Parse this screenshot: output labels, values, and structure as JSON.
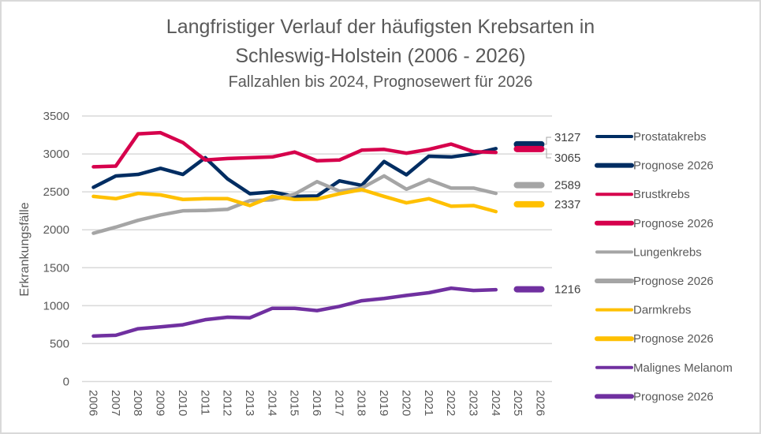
{
  "chart_data": {
    "type": "line",
    "title": "Langfristiger Verlauf der häufigsten Krebsarten in",
    "title_line2": "Schleswig-Holstein (2006 - 2026)",
    "subtitle": "Fallzahlen bis 2024, Prognosewert für 2026",
    "xlabel": "",
    "ylabel": "Erkrankungsfälle",
    "ylim": [
      0,
      3500
    ],
    "yticks": [
      0,
      500,
      1000,
      1500,
      2000,
      2500,
      3000,
      3500
    ],
    "x": [
      "2006",
      "2007",
      "2008",
      "2009",
      "2010",
      "2011",
      "2012",
      "2013",
      "2014",
      "2015",
      "2016",
      "2017",
      "2018",
      "2019",
      "2020",
      "2021",
      "2022",
      "2023",
      "2024",
      "2025",
      "2026"
    ],
    "grid": "horizontal",
    "legend_position": "right",
    "series": [
      {
        "name": "Prostatakrebs",
        "color": "#002D62",
        "values": [
          2560,
          2710,
          2730,
          2810,
          2730,
          2950,
          2670,
          2475,
          2500,
          2440,
          2445,
          2645,
          2585,
          2900,
          2725,
          2970,
          2960,
          3000,
          3070
        ]
      },
      {
        "name": "Prognose 2026",
        "color": "#002D62",
        "prognosis_of": "Prostatakrebs",
        "year": "2026",
        "value": 3127,
        "label": "3127"
      },
      {
        "name": "Brustkrebs",
        "color": "#D6004C",
        "values": [
          2830,
          2840,
          3265,
          3280,
          3150,
          2920,
          2940,
          2950,
          2960,
          3025,
          2910,
          2920,
          3050,
          3060,
          3010,
          3060,
          3130,
          3030,
          3020
        ]
      },
      {
        "name": "Prognose 2026",
        "color": "#D6004C",
        "prognosis_of": "Brustkrebs",
        "year": "2026",
        "value": 3065,
        "label": "3065"
      },
      {
        "name": "Lungenkrebs",
        "color": "#A5A5A5",
        "values": [
          1955,
          2035,
          2125,
          2195,
          2250,
          2255,
          2270,
          2385,
          2395,
          2470,
          2635,
          2510,
          2550,
          2710,
          2535,
          2660,
          2550,
          2550,
          2480
        ]
      },
      {
        "name": "Prognose 2026",
        "color": "#A5A5A5",
        "prognosis_of": "Lungenkrebs",
        "year": "2026",
        "value": 2589,
        "label": "2589"
      },
      {
        "name": "Darmkrebs",
        "color": "#FFC000",
        "values": [
          2440,
          2410,
          2480,
          2460,
          2400,
          2410,
          2410,
          2320,
          2440,
          2400,
          2405,
          2475,
          2530,
          2440,
          2355,
          2410,
          2310,
          2320,
          2240
        ]
      },
      {
        "name": "Prognose 2026",
        "color": "#FFC000",
        "prognosis_of": "Darmkrebs",
        "year": "2026",
        "value": 2337,
        "label": "2337"
      },
      {
        "name": "Malignes Melanom",
        "color": "#7030A0",
        "values": [
          600,
          610,
          696,
          720,
          748,
          815,
          848,
          840,
          965,
          965,
          935,
          990,
          1065,
          1095,
          1135,
          1170,
          1230,
          1200,
          1210
        ]
      },
      {
        "name": "Prognose 2026",
        "color": "#7030A0",
        "prognosis_of": "Malignes Melanom",
        "year": "2026",
        "value": 1216,
        "label": "1216"
      }
    ]
  }
}
